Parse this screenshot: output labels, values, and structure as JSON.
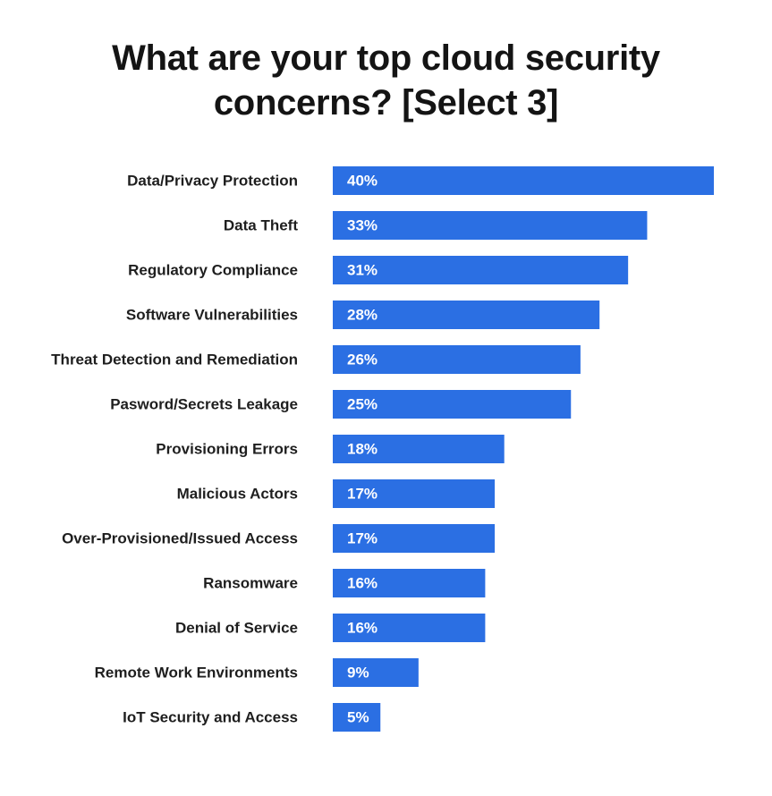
{
  "chart_data": {
    "type": "bar",
    "orientation": "horizontal",
    "title_lines": [
      "What are your top cloud security",
      "concerns? [Select 3]"
    ],
    "categories": [
      "Data/Privacy Protection",
      "Data Theft",
      "Regulatory Compliance",
      "Software Vulnerabilities",
      "Threat Detection and Remediation",
      "Pasword/Secrets Leakage",
      "Provisioning Errors",
      "Malicious Actors",
      "Over-Provisioned/Issued Access",
      "Ransomware",
      "Denial of Service",
      "Remote Work Environments",
      "IoT Security and Access"
    ],
    "values": [
      40,
      33,
      31,
      28,
      26,
      25,
      18,
      17,
      17,
      16,
      16,
      9,
      5
    ],
    "value_labels": [
      "40%",
      "33%",
      "31%",
      "28%",
      "26%",
      "25%",
      "18%",
      "17%",
      "17%",
      "16%",
      "16%",
      "9%",
      "5%"
    ],
    "unit": "%",
    "grid": false,
    "legend": "none",
    "bar_color": "#2b6fe3",
    "value_label_color": "#ffffff"
  }
}
